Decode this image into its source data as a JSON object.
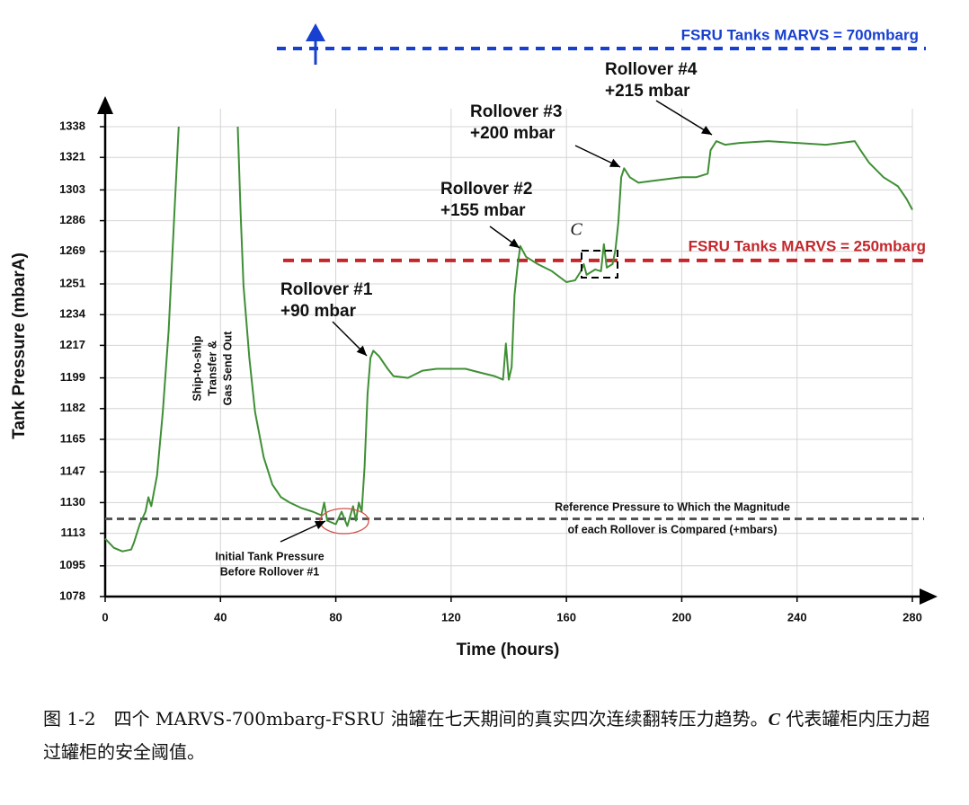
{
  "chart_data": {
    "type": "line",
    "x_label": "Time (hours)",
    "y_label": "Tank Pressure (mbarA)",
    "xlim": [
      0,
      280
    ],
    "ylim": [
      1078,
      1338
    ],
    "xticks": [
      0,
      40,
      80,
      120,
      160,
      200,
      240,
      280
    ],
    "yticks": [
      1078,
      1095,
      1113,
      1130,
      1147,
      1165,
      1182,
      1199,
      1217,
      1234,
      1251,
      1269,
      1286,
      1303,
      1321,
      1338
    ],
    "grid": true,
    "x": [
      0,
      3,
      6,
      9,
      10,
      12,
      14,
      15,
      16,
      18,
      20,
      22,
      24,
      25.5,
      36,
      46,
      47,
      48,
      50,
      52,
      55,
      58,
      61,
      64,
      68,
      72,
      75,
      76,
      77,
      80,
      82,
      84,
      86,
      87,
      88,
      89,
      90,
      91,
      92,
      93,
      95,
      98,
      100,
      105,
      110,
      115,
      120,
      125,
      130,
      135,
      138,
      139,
      140,
      141,
      142,
      143,
      144,
      146,
      150,
      155,
      160,
      163,
      165,
      166,
      167,
      170,
      172,
      173,
      174,
      176,
      177,
      178,
      179,
      180,
      182,
      185,
      190,
      200,
      205,
      209,
      210,
      212,
      215,
      220,
      230,
      240,
      250,
      260,
      262,
      265,
      270,
      275,
      278,
      280
    ],
    "series": [
      {
        "color": "#3f8f35",
        "values": [
          1110,
          1105,
          1103,
          1104,
          1108,
          1118,
          1125,
          1133,
          1128,
          1145,
          1180,
          1225,
          1290,
          1338,
          null,
          1338,
          1290,
          1250,
          1210,
          1180,
          1155,
          1140,
          1133,
          1130,
          1127,
          1125,
          1123,
          1130,
          1120,
          1118,
          1125,
          1117,
          1128,
          1120,
          1130,
          1125,
          1150,
          1190,
          1210,
          1214,
          1211,
          1204,
          1200,
          1199,
          1203,
          1204,
          1204,
          1204,
          1202,
          1200,
          1198,
          1218,
          1198,
          1205,
          1245,
          1260,
          1272,
          1266,
          1262,
          1258,
          1252,
          1253,
          1258,
          1262,
          1256,
          1259,
          1258,
          1273,
          1260,
          1262,
          1270,
          1285,
          1310,
          1315,
          1310,
          1307,
          1308,
          1310,
          1310,
          1312,
          1325,
          1330,
          1328,
          1329,
          1330,
          1329,
          1328,
          1330,
          1325,
          1318,
          1310,
          1305,
          1298,
          1292
        ]
      }
    ],
    "reference_lines": [
      {
        "label": "FSRU Tanks MARVS = 250mbarg",
        "value": 1264,
        "color": "#c4262b"
      },
      {
        "label": [
          "Reference Pressure to Which the Magnitude",
          "of each Rollover is Compared (+mbars)"
        ],
        "value": 1121,
        "color": "#555555"
      }
    ],
    "top_line": {
      "label": "FSRU Tanks MARVS = 700mbarg",
      "color": "#1840d0"
    },
    "annotations": [
      {
        "lines": [
          "Rollover #1",
          "+90 mbar"
        ]
      },
      {
        "lines": [
          "Rollover #2",
          "+155 mbar"
        ]
      },
      {
        "lines": [
          "Rollover #3",
          "+200 mbar"
        ]
      },
      {
        "lines": [
          "Rollover #4",
          "+215 mbar"
        ]
      },
      {
        "lines": [
          "Initial Tank Pressure",
          "Before Rollover #1"
        ]
      },
      {
        "lines": [
          "Ship-to-ship",
          "Transfer &",
          "Gas Send Out"
        ]
      }
    ],
    "marker_label": "C"
  },
  "caption": {
    "parts": [
      "图 1-2　四个 MARVS-700mbarg-FSRU 油罐在七天期间的真实四次连续翻转压力趋势。",
      "C",
      " 代表罐柜内压力超过罐柜的安全阈值。"
    ]
  }
}
